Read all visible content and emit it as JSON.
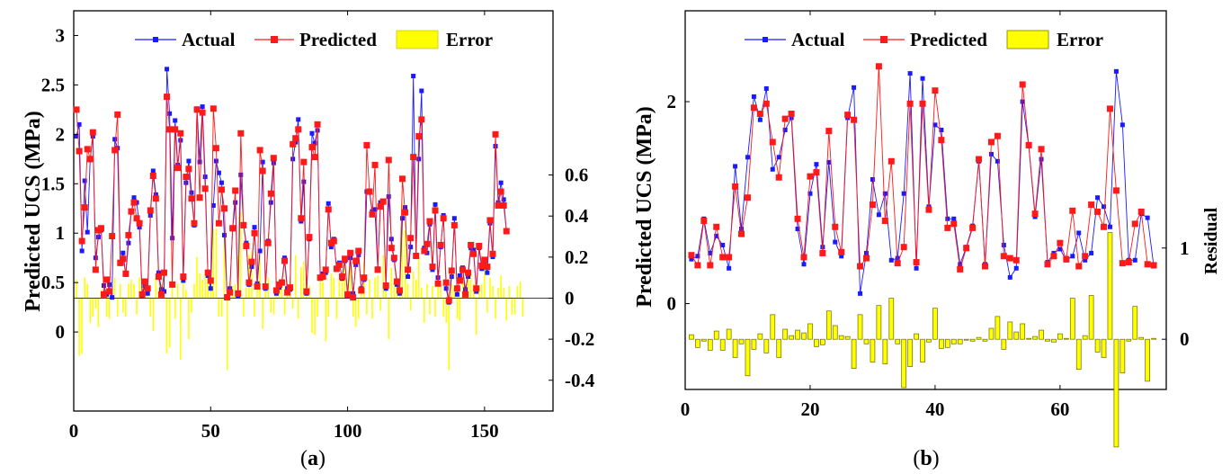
{
  "captions": [
    "(a)",
    "(b)"
  ],
  "caption_letters": [
    "a",
    "b"
  ],
  "chart_data": [
    {
      "type": "line",
      "panel": "a",
      "ylabel": "Predicted UCS (MPa)",
      "y2label": "",
      "xlim": [
        0,
        175
      ],
      "ylim": [
        -0.8,
        3.25
      ],
      "y2lim": [
        -0.55,
        1.4
      ],
      "xticks": [
        0,
        50,
        100,
        150
      ],
      "yticks": [
        0,
        0.5,
        1,
        1.5,
        2,
        2.5,
        3
      ],
      "ytick_labels": [
        "0",
        "0.5",
        "1",
        "1.5",
        "2",
        "2.5",
        "3"
      ],
      "y2ticks": [
        -0.4,
        -0.2,
        0,
        0.2,
        0.4,
        0.6
      ],
      "y2tick_labels": [
        "-0.4",
        "-0.2",
        "0",
        "0.2",
        "0.4",
        "0.6"
      ],
      "legend": [
        "Actual",
        "Predicted",
        "Error"
      ],
      "legend_position": "top",
      "colors": {
        "actual": "#1a1aff",
        "predicted": "#ff1a1a",
        "error": "#ffff00"
      },
      "series": [
        {
          "name": "Actual",
          "values": [
            1.98,
            2.1,
            0.82,
            1.53,
            1.01,
            1.74,
            1.98,
            0.75,
            0.96,
            1.03,
            0.47,
            0.38,
            0.48,
            0.35,
            1.95,
            1.86,
            0.69,
            0.8,
            0.58,
            0.9,
            1.21,
            1.36,
            1.31,
            1.06,
            0.36,
            0.47,
            0.39,
            1.18,
            1.63,
            1.39,
            0.6,
            0.43,
            0.41,
            2.66,
            2.21,
            0.95,
            2.14,
            1.69,
            1.94,
            0.52,
            1.51,
            1.73,
            1.41,
            1.08,
            2.26,
            1.72,
            2.28,
            1.57,
            0.57,
            0.44,
            1.28,
            1.73,
            1.61,
            1.51,
            0.98,
            0.36,
            0.44,
            1.04,
            1.31,
            0.36,
            1.59,
            1.09,
            0.9,
            0.48,
            0.66,
            1.06,
            0.49,
            0.82,
            1.72,
            0.44,
            0.92,
            1.31,
            1.71,
            0.39,
            0.45,
            0.51,
            0.75,
            0.44,
            0.43,
            1.75,
            1.92,
            2.15,
            1.12,
            1.52,
            0.39,
            0.94,
            2.01,
            1.91,
            2.04,
            0.54,
            0.59,
            0.6,
            1.3,
            0.86,
            0.94,
            0.63,
            0.7,
            0.54,
            0.72,
            0.36,
            0.75,
            0.39,
            0.68,
            0.78,
            0.44,
            0.53,
            1.42,
            1.43,
            1.22,
            1.24,
            0.64,
            1.31,
            1.31,
            0.44,
            1.37,
            0.94,
            0.73,
            0.48,
            0.39,
            1.15,
            1.26,
            0.56,
            0.86,
            2.59,
            0.76,
            1.75,
            2.44,
            0.85,
            0.8,
            1.09,
            0.63,
            1.29,
            0.55,
            0.86,
            1.18,
            0.44,
            0.3,
            0.56,
            1.15,
            0.38,
            0.57,
            0.65,
            0.43,
            0.56,
            0.85,
            0.83,
            0.41,
            0.85,
            0.64,
            0.71,
            0.6,
            1.1,
            0.76,
            1.88,
            1.31,
            1.51,
            1.34,
            1.02
          ]
        },
        {
          "name": "Predicted",
          "values": [
            2.25,
            1.83,
            0.92,
            1.26,
            1.85,
            1.75,
            2.02,
            0.63,
            1.03,
            1.05,
            0.38,
            0.53,
            0.41,
            0.97,
            1.84,
            2.2,
            0.7,
            0.74,
            0.59,
            0.98,
            1.22,
            1.31,
            1.15,
            1.1,
            0.38,
            0.51,
            0.44,
            1.23,
            1.58,
            1.35,
            0.56,
            0.38,
            0.6,
            2.38,
            2.05,
            0.48,
            2.05,
            1.66,
            2.01,
            0.56,
            1.57,
            1.65,
            1.35,
            1.1,
            2.25,
            1.36,
            2.22,
            1.45,
            0.6,
            0.52,
            2.26,
            1.86,
            1.1,
            1.44,
            1.25,
            0.35,
            0.4,
            1.05,
            1.43,
            0.39,
            2.01,
            1.08,
            0.87,
            0.5,
            0.71,
            1.0,
            0.46,
            1.84,
            1.63,
            0.46,
            0.9,
            1.4,
            1.76,
            0.42,
            0.48,
            0.5,
            0.72,
            0.4,
            0.45,
            1.9,
            1.96,
            2.05,
            1.15,
            1.72,
            0.41,
            0.96,
            1.87,
            1.77,
            2.1,
            0.55,
            0.56,
            0.63,
            1.24,
            0.9,
            0.92,
            0.64,
            0.68,
            0.56,
            0.74,
            0.38,
            0.8,
            0.35,
            0.72,
            0.82,
            0.42,
            0.55,
            1.89,
            1.42,
            1.19,
            1.69,
            0.63,
            1.27,
            1.32,
            0.47,
            1.74,
            0.85,
            0.75,
            0.51,
            0.42,
            1.55,
            1.21,
            0.63,
            0.95,
            1.77,
            0.77,
            1.98,
            2.15,
            0.82,
            0.89,
            1.12,
            0.66,
            1.23,
            0.49,
            0.88,
            1.15,
            0.5,
            0.32,
            0.62,
            1.08,
            0.44,
            0.52,
            0.63,
            0.38,
            0.6,
            0.88,
            0.79,
            0.44,
            0.87,
            0.67,
            0.73,
            0.66,
            1.13,
            0.79,
            2.0,
            1.28,
            1.42,
            1.28,
            1.02
          ]
        },
        {
          "name": "Error",
          "values": [
            0.09,
            -0.28,
            -0.27,
            0.1,
            0.07,
            -0.12,
            -0.09,
            -0.05,
            -0.14,
            0.04,
            0.04,
            -0.09,
            -0.1,
            0.06,
            0.1,
            -0.09,
            0.07,
            -0.07,
            -0.09,
            0.07,
            0.09,
            0.07,
            -0.08,
            0.1,
            0.06,
            0.05,
            0.08,
            -0.09,
            -0.16,
            0.1,
            0.05,
            0.07,
            0.11,
            -0.27,
            -0.24,
            0.06,
            -0.1,
            0.07,
            -0.3,
            0.09,
            0.04,
            -0.2,
            -0.07,
            0.07,
            0.2,
            0.12,
            0.09,
            0.12,
            0.13,
            0.11,
            0.34,
            0.34,
            -0.09,
            -0.09,
            0.28,
            -0.35,
            0.08,
            0.06,
            0.07,
            0.21,
            0.42,
            -0.09,
            0.05,
            0.21,
            0.23,
            -0.09,
            0.07,
            0.21,
            -0.15,
            0.06,
            0.1,
            -0.07,
            -0.08,
            0.06,
            0.08,
            0.1,
            -0.08,
            0.06,
            0.09,
            -0.05,
            0.21,
            -0.1,
            0.15,
            0.18,
            0.07,
            0.06,
            -0.17,
            -0.18,
            -0.09,
            0.1,
            0.08,
            -0.21,
            -0.09,
            0.12,
            0.1,
            -0.1,
            0.09,
            0.1,
            0.2,
            0.07,
            0.16,
            -0.09,
            -0.14,
            -0.1,
            0.06,
            0.18,
            -0.08,
            0.09,
            -0.1,
            0.1,
            0.11,
            -0.06,
            0.21,
            0.06,
            -0.2,
            0.15,
            0.08,
            0.1,
            0.11,
            0.46,
            0.33,
            0.07,
            -0.06,
            0.13,
            0.09,
            0.2,
            0.05,
            -0.12,
            0.07,
            -0.08,
            0.06,
            -0.09,
            0.11,
            0.07,
            -0.09,
            -0.12,
            -0.35,
            0.07,
            0.05,
            -0.1,
            -0.11,
            0.11,
            0.07,
            0.09,
            0.13,
            0.07,
            -0.18,
            0.06,
            0.07,
            0.16,
            -0.07,
            0.1,
            0.06,
            -0.1,
            0.05,
            0.11,
            0.05,
            -0.11,
            0.06,
            -0.08,
            -0.08,
            0.06,
            0.08,
            -0.09
          ]
        }
      ]
    },
    {
      "type": "line",
      "panel": "b",
      "ylabel": "Predicted UCS (MPa)",
      "y2label": "Residual",
      "xlim": [
        0,
        77
      ],
      "ylim": [
        -0.85,
        2.9
      ],
      "y2lim": [
        -0.55,
        3.6
      ],
      "xticks": [
        0,
        20,
        40,
        60
      ],
      "yticks": [
        0,
        2
      ],
      "ytick_labels": [
        "0",
        "2"
      ],
      "y2ticks": [
        0,
        1
      ],
      "y2tick_labels": [
        "0",
        "1"
      ],
      "legend": [
        "Actual",
        "Predicted",
        "Error"
      ],
      "legend_position": "top",
      "colors": {
        "actual": "#1a1aff",
        "predicted": "#ff1a1a",
        "error": "#ffff00"
      },
      "series": [
        {
          "name": "Actual",
          "values": [
            0.44,
            0.47,
            0.84,
            0.5,
            0.67,
            0.58,
            0.35,
            1.36,
            0.74,
            1.45,
            2.05,
            1.82,
            2.13,
            1.33,
            1.45,
            1.72,
            1.84,
            0.74,
            0.39,
            1.09,
            1.38,
            0.56,
            1.4,
            0.61,
            0.47,
            1.84,
            2.14,
            0.1,
            0.5,
            1.23,
            0.88,
            1.09,
            0.43,
            0.45,
            1.09,
            2.28,
            0.35,
            2.23,
            0.96,
            1.77,
            1.72,
            0.84,
            0.84,
            0.39,
            0.56,
            0.77,
            1.41,
            0.39,
            1.48,
            1.41,
            0.58,
            0.26,
            0.35,
            2.0,
            1.56,
            0.86,
            1.43,
            0.41,
            0.5,
            0.54,
            0.43,
            0.47,
            0.7,
            0.43,
            0.5,
            1.05,
            0.96,
            0.76,
            2.3,
            1.77,
            0.43,
            0.43,
            0.89,
            0.85,
            0.37
          ]
        },
        {
          "name": "Predicted",
          "values": [
            0.48,
            0.38,
            0.82,
            0.38,
            0.76,
            0.46,
            0.46,
            1.16,
            0.69,
            1.05,
            1.94,
            1.88,
            1.98,
            1.6,
            1.25,
            1.83,
            1.88,
            0.84,
            0.46,
            1.26,
            1.3,
            0.5,
            1.71,
            0.76,
            0.51,
            1.87,
            1.82,
            0.37,
            0.45,
            0.98,
            2.35,
            0.82,
            1.41,
            0.4,
            0.56,
            1.98,
            0.41,
            1.98,
            0.93,
            2.11,
            1.62,
            0.75,
            0.79,
            0.34,
            0.55,
            0.75,
            1.43,
            0.37,
            1.6,
            1.66,
            0.47,
            0.45,
            0.43,
            2.17,
            1.57,
            0.89,
            1.53,
            0.39,
            0.47,
            0.6,
            0.44,
            0.92,
            0.37,
            0.47,
            0.98,
            0.91,
            0.76,
            1.93,
            1.12,
            0.4,
            0.41,
            0.79,
            0.91,
            0.39,
            0.38
          ]
        },
        {
          "name": "Error",
          "values": [
            0.05,
            -0.09,
            -0.02,
            -0.12,
            0.09,
            -0.12,
            0.11,
            -0.2,
            -0.05,
            -0.4,
            -0.11,
            0.06,
            -0.15,
            0.27,
            -0.2,
            0.11,
            0.04,
            0.1,
            0.07,
            0.17,
            -0.08,
            -0.06,
            0.31,
            0.15,
            0.04,
            0.03,
            -0.32,
            0.27,
            -0.05,
            -0.25,
            0.37,
            -0.27,
            0.45,
            -0.05,
            -0.53,
            -0.3,
            0.06,
            -0.25,
            -0.03,
            0.34,
            -0.1,
            -0.09,
            -0.05,
            -0.05,
            -0.01,
            -0.02,
            0.02,
            -0.02,
            0.12,
            0.25,
            -0.11,
            0.19,
            0.08,
            0.17,
            0.01,
            0.03,
            0.1,
            -0.02,
            -0.03,
            0.06,
            0.01,
            0.45,
            -0.33,
            0.04,
            0.48,
            -0.14,
            -0.2,
            1.17,
            -1.18,
            -0.37,
            -0.02,
            0.36,
            0.02,
            -0.46,
            0.01
          ]
        }
      ]
    }
  ]
}
